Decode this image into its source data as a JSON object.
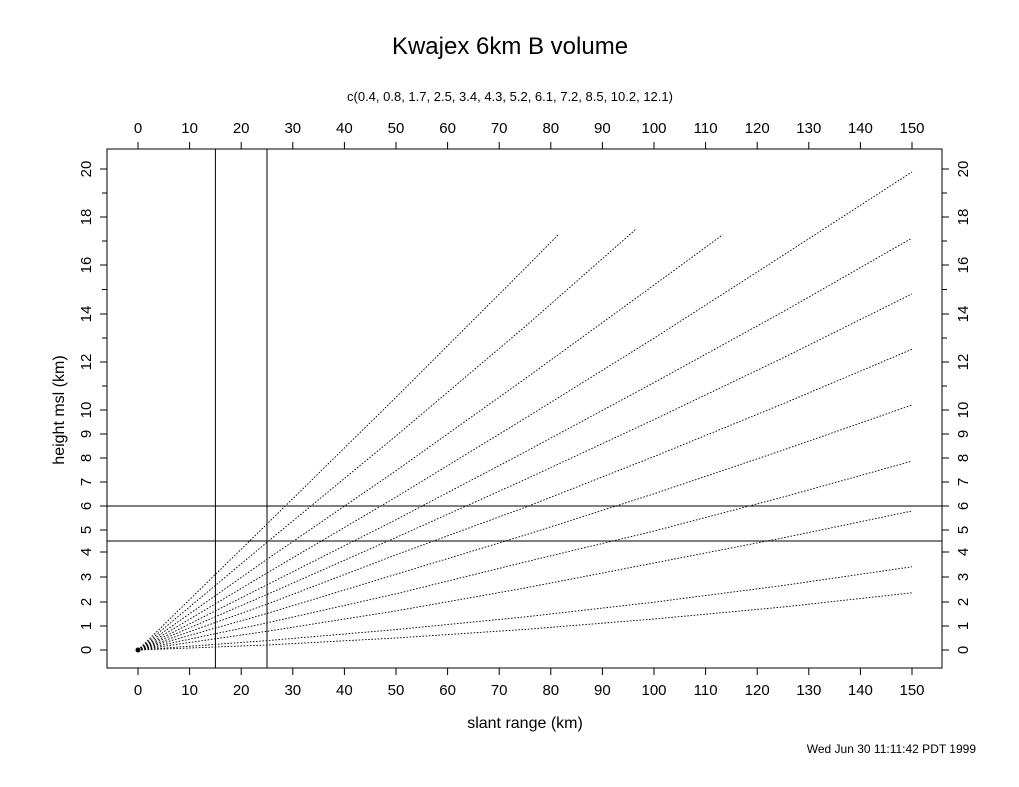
{
  "chart_data": {
    "type": "line",
    "title": "Kwajex 6km B volume",
    "subtitle": "c(0.4, 0.8, 1.7, 2.5, 3.4, 4.3, 5.2, 6.1, 7.2, 8.5, 10.2, 12.1)",
    "xlabel": "slant range (km)",
    "ylabel": "height msl (km)",
    "xlim": [
      0,
      150
    ],
    "ylim": [
      0,
      20
    ],
    "x_ticks": [
      "0",
      "10",
      "20",
      "30",
      "40",
      "50",
      "60",
      "70",
      "80",
      "90",
      "100",
      "110",
      "120",
      "130",
      "140",
      "150"
    ],
    "y_ticks": [
      "0",
      "1",
      "2",
      "3",
      "4",
      "5",
      "6",
      "7",
      "8",
      "9",
      "10",
      "12",
      "14",
      "16",
      "18",
      "20"
    ],
    "elevation_angles_deg": [
      0.4,
      0.8,
      1.7,
      2.5,
      3.4,
      4.3,
      5.2,
      6.1,
      7.2,
      8.5,
      10.2,
      12.1
    ],
    "series": [
      {
        "x": [
          0,
          25,
          50,
          75,
          100,
          125,
          150
        ],
        "y": [
          0.0,
          0.21,
          0.5,
          0.86,
          1.29,
          1.79,
          2.37
        ]
      },
      {
        "x": [
          0,
          25,
          50,
          75,
          100,
          125,
          150
        ],
        "y": [
          0.0,
          0.39,
          0.85,
          1.38,
          1.99,
          2.66,
          3.41
        ]
      },
      {
        "x": [
          0,
          25,
          50,
          75,
          100,
          125,
          150
        ],
        "y": [
          0.0,
          0.78,
          1.63,
          2.56,
          3.56,
          4.64,
          5.79
        ]
      },
      {
        "x": [
          0,
          25,
          50,
          75,
          100,
          125,
          150
        ],
        "y": [
          0.0,
          1.13,
          2.33,
          3.6,
          4.95,
          6.37,
          7.87
        ]
      },
      {
        "x": [
          0,
          25,
          50,
          75,
          100,
          125,
          150
        ],
        "y": [
          0.0,
          1.52,
          3.11,
          4.77,
          6.51,
          8.33,
          10.21
        ]
      },
      {
        "x": [
          0,
          25,
          50,
          75,
          100,
          125,
          150
        ],
        "y": [
          0.0,
          1.91,
          3.89,
          5.94,
          8.06,
          10.26,
          12.53
        ]
      },
      {
        "x": [
          0,
          25,
          50,
          75,
          100,
          125,
          150
        ],
        "y": [
          0.0,
          2.3,
          4.66,
          7.1,
          9.6,
          12.17,
          14.82
        ]
      },
      {
        "x": [
          0,
          25,
          50,
          75,
          100,
          125,
          150
        ],
        "y": [
          0.0,
          2.69,
          5.43,
          8.25,
          11.14,
          14.09,
          17.12
        ]
      },
      {
        "x": [
          0,
          25,
          50,
          75,
          100,
          125,
          150
        ],
        "y": [
          0.0,
          3.16,
          6.37,
          9.65,
          12.99,
          16.4,
          19.88
        ]
      },
      {
        "x": [
          0,
          25,
          50,
          75,
          100,
          113.3
        ],
        "y": [
          0.0,
          3.71,
          7.47,
          11.3,
          15.18,
          17.26
        ]
      },
      {
        "x": [
          0,
          25,
          50,
          75,
          96.5
        ],
        "y": [
          0.0,
          4.44,
          8.92,
          13.47,
          17.49
        ]
      },
      {
        "x": [
          0,
          25,
          50,
          75,
          81.6
        ],
        "y": [
          0.0,
          5.25,
          10.53,
          15.86,
          17.3
        ]
      }
    ],
    "reference_lines": {
      "x": [
        15,
        25
      ],
      "y": [
        4.5,
        6
      ]
    },
    "grid": false,
    "timestamp": "Wed Jun 30 11:11:42 PDT 1999"
  },
  "colors": {
    "axis": "#000000",
    "series": "#000000",
    "background": "#ffffff"
  }
}
